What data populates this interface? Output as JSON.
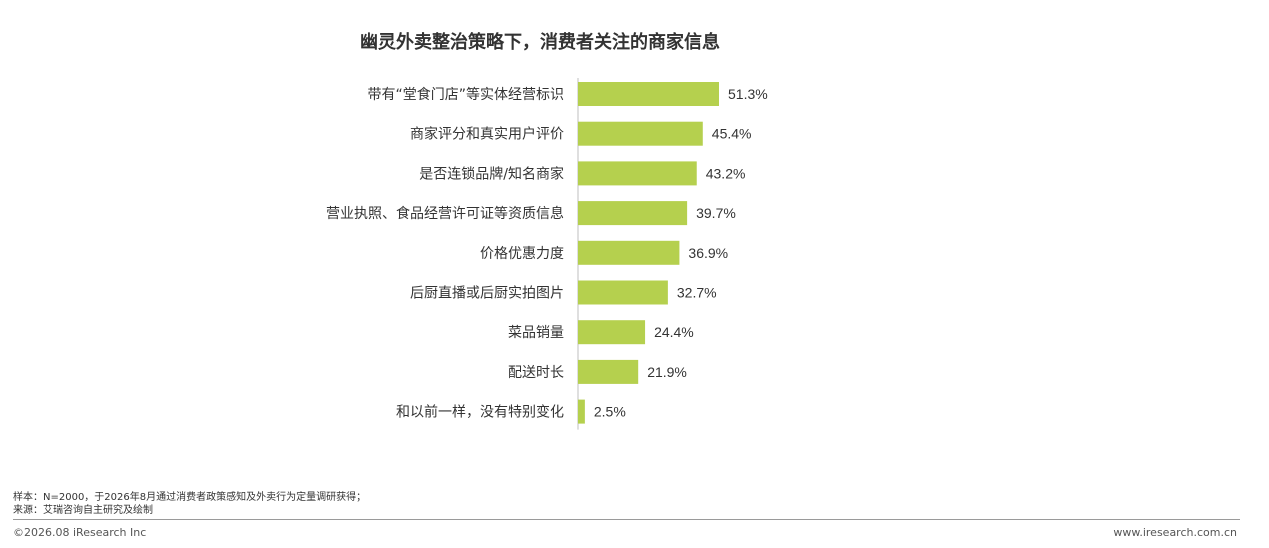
{
  "chart_data": {
    "type": "bar",
    "orientation": "horizontal",
    "title": "幽灵外卖整治策略下，消费者关注的商家信息",
    "categories": [
      "带有“堂食门店”等实体经营标识",
      "商家评分和真实用户评价",
      "是否连锁品牌/知名商家",
      "营业执照、食品经营许可证等资质信息",
      "价格优惠力度",
      "后厨直播或后厨实拍图片",
      "菜品销量",
      "配送时长",
      "和以前一样，没有特别变化"
    ],
    "values": [
      51.3,
      45.4,
      43.2,
      39.7,
      36.9,
      32.7,
      24.4,
      21.9,
      2.5
    ],
    "value_labels": [
      "51.3%",
      "45.4%",
      "43.2%",
      "39.7%",
      "36.9%",
      "32.7%",
      "24.4%",
      "21.9%",
      "2.5%"
    ],
    "unit": "%",
    "bar_color": "#b5d04e",
    "grid": false
  },
  "footer": {
    "sample": "样本：N=2000，于2026年8月通过消费者政策感知及外卖行为定量调研获得；",
    "source": "来源：艾瑞咨询自主研究及绘制",
    "copyright": "©2026.08 iResearch Inc",
    "website": "www.iresearch.com.cn"
  }
}
